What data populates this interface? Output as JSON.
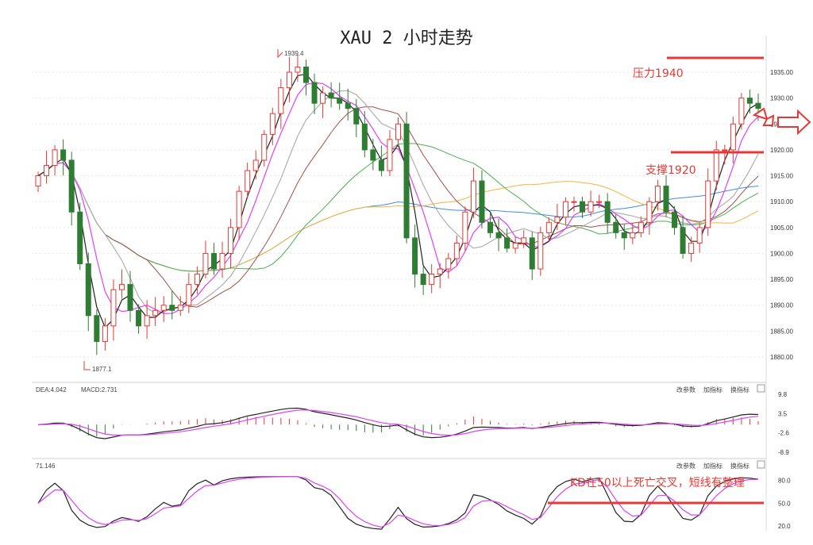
{
  "title": "XAU 2 小时走势",
  "chart_data": [
    {
      "type": "candlestick",
      "panel": "price",
      "title": "XAU 2 小时走势",
      "y_ticks": [
        "1935.00",
        "1930.00",
        "1925.00",
        "1920.00",
        "1915.00",
        "1910.00",
        "1905.00",
        "1900.00",
        "1895.00",
        "1890.00",
        "1885.00",
        "1880.00"
      ],
      "y_tick_values": [
        1935,
        1930,
        1925,
        1920,
        1915,
        1910,
        1905,
        1900,
        1895,
        1890,
        1885,
        1880
      ],
      "ylim": [
        1876,
        1940
      ],
      "high_marker": "1939.4",
      "low_marker": "1877.1",
      "closes": [
        1915,
        1917,
        1920,
        1918,
        1908,
        1898,
        1888,
        1883,
        1886,
        1893,
        1894,
        1889,
        1886,
        1888,
        1889,
        1890,
        1889,
        1890,
        1894,
        1896,
        1900,
        1897,
        1900,
        1905,
        1912,
        1916,
        1918,
        1923,
        1927,
        1932,
        1935,
        1936,
        1933,
        1929,
        1931,
        1930,
        1929,
        1928,
        1925,
        1920,
        1918,
        1916,
        1922,
        1925,
        1903,
        1896,
        1894,
        1896,
        1897,
        1899,
        1902,
        1908,
        1914,
        1906,
        1904,
        1903,
        1901,
        1902,
        1903,
        1897,
        1904,
        1906,
        1907,
        1910,
        1910,
        1908,
        1910,
        1910,
        1906,
        1904,
        1903,
        1904,
        1906,
        1910,
        1913,
        1908,
        1905,
        1900,
        1902,
        1905,
        1914,
        1920,
        1920,
        1925,
        1930,
        1929,
        1928
      ],
      "annotations": [
        {
          "label": "压力1940",
          "price": 1940
        },
        {
          "label": "支撑1920",
          "price": 1920
        }
      ],
      "colors": {
        "up": "#e53935",
        "down": "#2e7d32",
        "ma5": "#222222",
        "ma10": "#e040fb",
        "ma20": "#b0b0b0",
        "ma30": "#a05050",
        "ma60": "#4caf50",
        "ma120": "#3f8ee0",
        "ma250": "#f4b63c"
      }
    },
    {
      "type": "macd",
      "panel": "macd",
      "legend": [
        "DEA:4.042",
        "MACD:2.731"
      ],
      "y_ticks": [
        "9.8",
        "3.5",
        "-2.6",
        "-8.9"
      ],
      "y_tick_values": [
        9.8,
        3.5,
        -2.6,
        -8.9
      ],
      "buttons": [
        "改参数",
        "加指标",
        "换指标"
      ]
    },
    {
      "type": "kd",
      "panel": "kd",
      "legend": [
        "71.146"
      ],
      "y_ticks": [
        "80.0",
        "50.0",
        "20.0"
      ],
      "y_tick_values": [
        80,
        50,
        20
      ],
      "buttons": [
        "改参数",
        "加指标",
        "换指标"
      ],
      "annotation": "KD在50以上死亡交叉，短线有整理"
    }
  ]
}
